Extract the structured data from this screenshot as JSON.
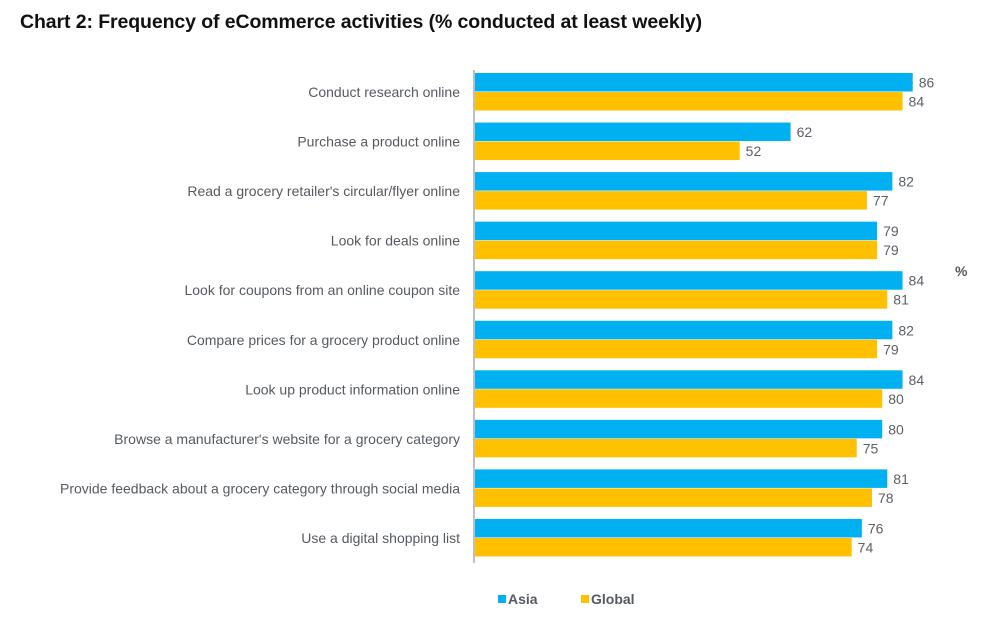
{
  "chart_data": {
    "type": "bar",
    "orientation": "horizontal",
    "title": "Chart 2: Frequency of eCommerce activities (% conducted at least weekly)",
    "xlabel": "",
    "ylabel": "",
    "unit_label": "%",
    "xlim": [
      0,
      100
    ],
    "grid": false,
    "legend_position": "bottom",
    "categories": [
      "Conduct research online",
      "Purchase a product online",
      "Read a grocery retailer's circular/flyer online",
      "Look for deals online",
      "Look for coupons from an online coupon site",
      "Compare prices for a grocery product online",
      "Look up product information online",
      "Browse a manufacturer's website for a grocery category",
      "Provide feedback about a grocery category through social media",
      "Use a digital shopping list"
    ],
    "series": [
      {
        "name": "Asia",
        "color": "#00b0f0",
        "values": [
          86,
          62,
          82,
          79,
          84,
          82,
          84,
          80,
          81,
          76
        ]
      },
      {
        "name": "Global",
        "color": "#ffc000",
        "values": [
          84,
          52,
          77,
          79,
          81,
          79,
          80,
          75,
          78,
          74
        ]
      }
    ]
  }
}
